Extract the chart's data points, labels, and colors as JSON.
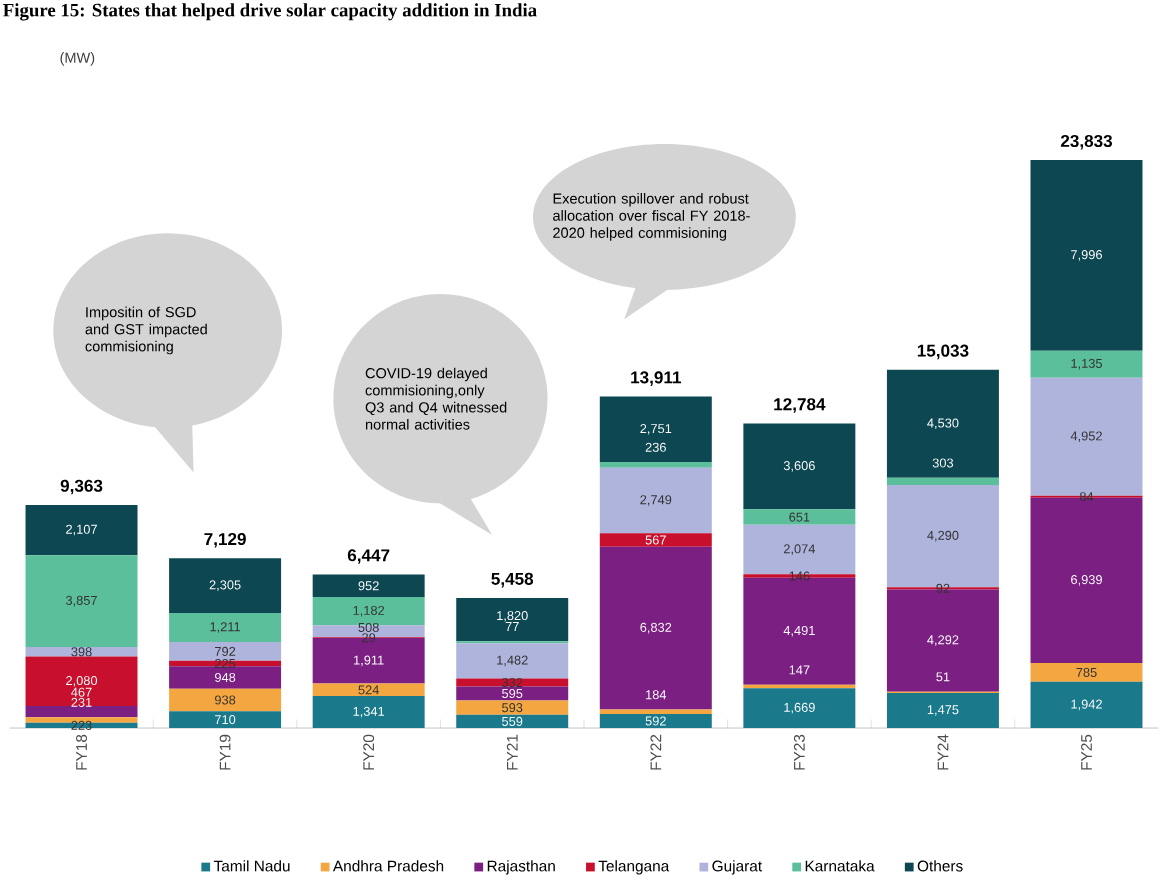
{
  "chart_data": {
    "type": "bar",
    "stacked": true,
    "title": "Figure 15: States that helped drive solar capacity addition in India",
    "categories": [
      "FY18",
      "FY19",
      "FY20",
      "FY21",
      "FY22",
      "FY23",
      "FY24",
      "FY25"
    ],
    "series": [
      {
        "name": "Tamil Nadu",
        "color": "#1a7a8c",
        "values": [
          223,
          710,
          1341,
          559,
          592,
          1669,
          1475,
          1942
        ],
        "value_labels": [
          "223",
          "710",
          "1,341",
          "559",
          "592",
          "1,669",
          "1,475",
          "1,942"
        ]
      },
      {
        "name": "Andhra Pradesh",
        "color": "#f4a640",
        "values": [
          231,
          938,
          524,
          593,
          184,
          147,
          51,
          785
        ],
        "value_labels": [
          "231",
          "938",
          "524",
          "593",
          "184",
          "147",
          "51",
          "785"
        ]
      },
      {
        "name": "Rajasthan",
        "color": "#7b1f82",
        "values": [
          467,
          948,
          1911,
          595,
          6832,
          4491,
          4292,
          6939
        ],
        "value_labels": [
          "467",
          "948",
          "1,911",
          "595",
          "6,832",
          "4,491",
          "4,292",
          "6,939"
        ]
      },
      {
        "name": "Telangana",
        "color": "#c8102e",
        "values": [
          2080,
          225,
          29,
          332,
          567,
          146,
          92,
          84
        ],
        "value_labels": [
          "2,080",
          "225",
          "29",
          "332",
          "567",
          "146",
          "92",
          "84"
        ]
      },
      {
        "name": "Gujarat",
        "color": "#aeb4dc",
        "values": [
          398,
          792,
          508,
          1482,
          2749,
          2074,
          4290,
          4952
        ],
        "value_labels": [
          "398",
          "792",
          "508",
          "1,482",
          "2,749",
          "2,074",
          "4,290",
          "4,952"
        ]
      },
      {
        "name": "Karnataka",
        "color": "#5bbf9c",
        "values": [
          3857,
          1211,
          1182,
          77,
          236,
          651,
          303,
          1135
        ],
        "value_labels": [
          "3,857",
          "1,211",
          "1,182",
          "77",
          "236",
          "651",
          "303",
          "1,135"
        ]
      },
      {
        "name": "Others",
        "color": "#0d4752",
        "values": [
          2107,
          2305,
          952,
          1820,
          2751,
          3606,
          4530,
          7996
        ],
        "value_labels": [
          "2,107",
          "2,305",
          "952",
          "1,820",
          "2,751",
          "3,606",
          "4,530",
          "7,996"
        ]
      }
    ],
    "totals": [
      "9,363",
      "7,129",
      "6,447",
      "5,458",
      "13,911",
      "12,784",
      "15,033",
      "23,833"
    ],
    "annotations": [
      "(MW)",
      "Impositin of SGD and GST impacted commisioning",
      "COVID-19 delayed commisioning,only Q3 and Q4 witnessed normal activities",
      "Execution spillover and robust allocation over fiscal FY 2018-2020 helped commisioning"
    ],
    "legend": "bottom"
  }
}
